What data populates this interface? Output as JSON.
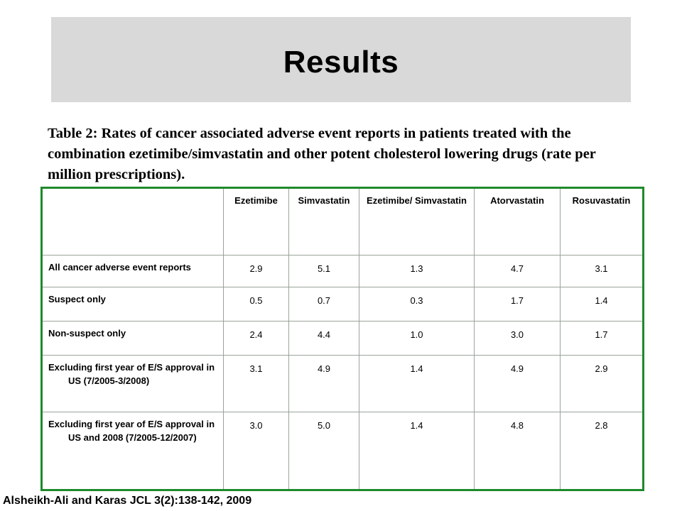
{
  "slide": {
    "title": "Results",
    "caption": "Table 2:  Rates of cancer associated adverse event reports in patients treated with the combination ezetimibe/simvastatin and other potent cholesterol lowering drugs (rate per million prescriptions).",
    "citation": "Alsheikh-Ali and Karas JCL 3(2):138-142, 2009",
    "colors": {
      "title_bg": "#d9d9d9",
      "table_border": "#1e8a2b"
    }
  },
  "table": {
    "headers": [
      "",
      "Ezetimibe",
      "Simvastatin",
      "Ezetimibe/ Simvastatin",
      "Atorvastatin",
      "Rosuvastatin"
    ],
    "rows": [
      {
        "label": "All cancer adverse event reports",
        "values": [
          "2.9",
          "5.1",
          "1.3",
          "4.7",
          "3.1"
        ]
      },
      {
        "label": "Suspect only",
        "values": [
          "0.5",
          "0.7",
          "0.3",
          "1.7",
          "1.4"
        ]
      },
      {
        "label": "Non-suspect only",
        "values": [
          "2.4",
          "4.4",
          "1.0",
          "3.0",
          "1.7"
        ]
      },
      {
        "label": "Excluding first year of E/S approval in US (7/2005-3/2008)",
        "values": [
          "3.1",
          "4.9",
          "1.4",
          "4.9",
          "2.9"
        ]
      },
      {
        "label": "Excluding first year of E/S approval in US and 2008 (7/2005-12/2007)",
        "values": [
          "3.0",
          "5.0",
          "1.4",
          "4.8",
          "2.8"
        ]
      }
    ]
  }
}
